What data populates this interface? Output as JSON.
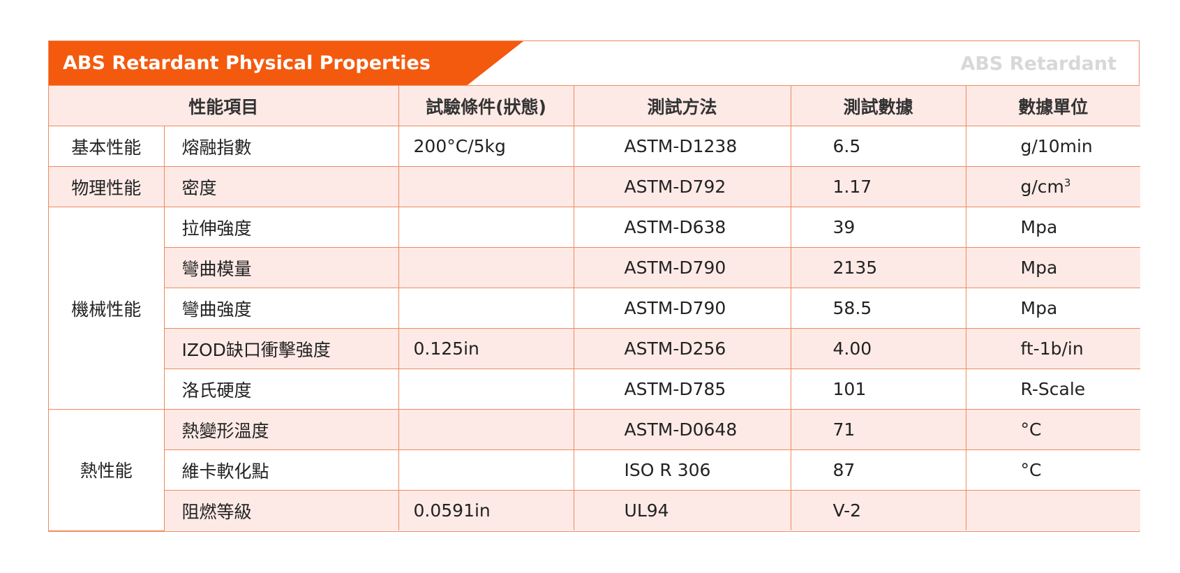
{
  "title": "ABS Retardant Physical Properties",
  "title_right": "ABS Retardant",
  "colors": {
    "accent": "#f35a0e",
    "border": "#f08a5d",
    "row_pink": "#fdeae6",
    "muted_text": "#d8d8d8"
  },
  "headers": {
    "property": "性能項目",
    "condition": "試驗條件(狀態)",
    "method": "測試方法",
    "data": "測試數據",
    "unit": "數據單位"
  },
  "categories": {
    "basic": "基本性能",
    "physical": "物理性能",
    "mechanical": "機械性能",
    "thermal": "熱性能"
  },
  "rows": [
    {
      "name": "熔融指數",
      "condition": "200°C/5kg",
      "method": "ASTM-D1238",
      "value": "6.5",
      "unit": "g/10min"
    },
    {
      "name": "密度",
      "condition": "",
      "method": "ASTM-D792",
      "value": "1.17",
      "unit": "g/cm",
      "unit_sup": "3"
    },
    {
      "name": "拉伸強度",
      "condition": "",
      "method": "ASTM-D638",
      "value": "39",
      "unit": "Mpa"
    },
    {
      "name": "彎曲模量",
      "condition": "",
      "method": "ASTM-D790",
      "value": "2135",
      "unit": "Mpa"
    },
    {
      "name": "彎曲強度",
      "condition": "",
      "method": "ASTM-D790",
      "value": "58.5",
      "unit": "Mpa"
    },
    {
      "name": "IZOD缺口衝擊強度",
      "condition": "0.125in",
      "method": "ASTM-D256",
      "value": "4.00",
      "unit": "ft-1b/in"
    },
    {
      "name": "洛氏硬度",
      "condition": "",
      "method": "ASTM-D785",
      "value": "101",
      "unit": "R-Scale"
    },
    {
      "name": "熱變形溫度",
      "condition": "",
      "method": "ASTM-D0648",
      "value": "71",
      "unit": "°C"
    },
    {
      "name": "維卡軟化點",
      "condition": "",
      "method": "ISO R 306",
      "value": "87",
      "unit": "°C"
    },
    {
      "name": "阻燃等級",
      "condition": "0.0591in",
      "method": "UL94",
      "value": "V-2",
      "unit": ""
    }
  ]
}
